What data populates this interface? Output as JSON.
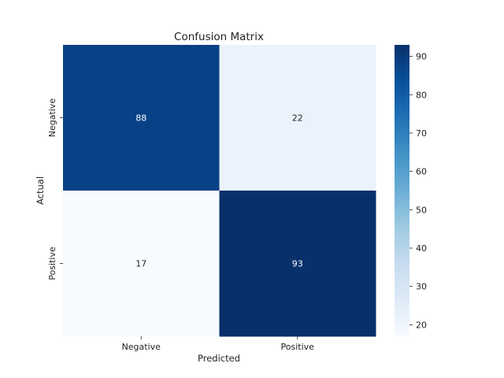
{
  "chart_data": {
    "type": "heatmap",
    "title": "Confusion Matrix",
    "xlabel": "Predicted",
    "ylabel": "Actual",
    "x_categories": [
      "Negative",
      "Positive"
    ],
    "y_categories": [
      "Negative",
      "Positive"
    ],
    "values": [
      [
        88,
        22
      ],
      [
        17,
        93
      ]
    ],
    "colormap": "Blues",
    "color_range": [
      17,
      93
    ],
    "colorbar_ticks": [
      20,
      30,
      40,
      50,
      60,
      70,
      80,
      90
    ],
    "annotation_text_colors": {
      "dark_cell": "#ffffff",
      "light_cell": "#262626"
    },
    "grid": false,
    "legend": "colorbar-right"
  }
}
